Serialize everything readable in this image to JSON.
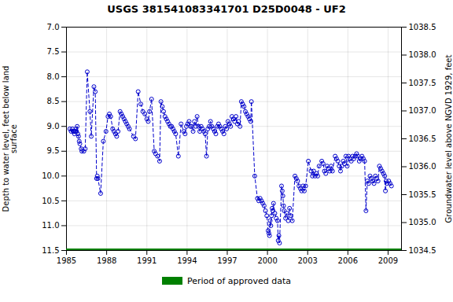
{
  "chart_data": {
    "type": "line",
    "title": "USGS 381541083341701 D25D0048 - UF2",
    "ylabel": "Depth to water level, feet below land\nsurface",
    "y2label": "Groundwater level above NGVD 1929, feet",
    "xlim": [
      1985,
      2010
    ],
    "xticks": [
      1985,
      1988,
      1991,
      1994,
      1997,
      2000,
      2003,
      2006,
      2009
    ],
    "ylim": [
      11.5,
      7.0
    ],
    "yticks": [
      {
        "value": 7.0,
        "label": "7.0"
      },
      7.5,
      {
        "value": 8.0,
        "label": "8.0"
      },
      8.5,
      {
        "value": 9.0,
        "label": "9.0"
      },
      9.5,
      {
        "value": 10.0,
        "label": "10.0"
      },
      10.5,
      {
        "value": 11.0,
        "label": "11.0"
      },
      11.5
    ],
    "y2lim": [
      1034.5,
      1038.5
    ],
    "y2ticks": [
      1034.5,
      {
        "value": 1035.0,
        "label": "1035.0"
      },
      1035.5,
      {
        "value": 1036.0,
        "label": "1036.0"
      },
      1036.5,
      {
        "value": 1037.0,
        "label": "1037.0"
      },
      1037.5,
      {
        "value": 1038.0,
        "label": "1038.0"
      },
      1038.5
    ],
    "grid": true,
    "legend": "bottom",
    "series": [
      {
        "type": "line",
        "color": "#0000cc",
        "marker": "circle",
        "line_style": "dashed",
        "x": [
          1985.25,
          1985.35,
          1985.45,
          1985.5,
          1985.55,
          1985.6,
          1985.65,
          1985.7,
          1985.75,
          1985.8,
          1985.85,
          1985.9,
          1985.95,
          1986.0,
          1986.1,
          1986.15,
          1986.3,
          1986.4,
          1986.55,
          1986.75,
          1986.85,
          1987.05,
          1987.15,
          1987.25,
          1987.3,
          1987.35,
          1987.55,
          1987.75,
          1987.95,
          1988.1,
          1988.2,
          1988.3,
          1988.45,
          1988.55,
          1988.65,
          1988.75,
          1988.85,
          1989.0,
          1989.1,
          1989.2,
          1989.3,
          1989.4,
          1989.5,
          1989.6,
          1989.7,
          1990.0,
          1990.15,
          1990.35,
          1990.55,
          1990.7,
          1990.85,
          1991.0,
          1991.1,
          1991.2,
          1991.35,
          1991.55,
          1991.65,
          1991.8,
          1991.95,
          1992.05,
          1992.15,
          1992.25,
          1992.35,
          1992.45,
          1992.55,
          1992.65,
          1992.75,
          1992.85,
          1992.95,
          1993.05,
          1993.15,
          1993.35,
          1993.55,
          1993.75,
          1993.85,
          1993.95,
          1994.05,
          1994.15,
          1994.25,
          1994.35,
          1994.45,
          1994.55,
          1994.65,
          1994.75,
          1994.85,
          1994.95,
          1995.05,
          1995.15,
          1995.25,
          1995.35,
          1995.45,
          1995.55,
          1995.65,
          1995.75,
          1995.85,
          1995.95,
          1996.05,
          1996.15,
          1996.25,
          1996.35,
          1996.45,
          1996.55,
          1996.65,
          1996.75,
          1996.85,
          1996.95,
          1997.05,
          1997.15,
          1997.25,
          1997.35,
          1997.45,
          1997.55,
          1997.65,
          1997.75,
          1997.85,
          1997.95,
          1998.05,
          1998.15,
          1998.25,
          1998.35,
          1998.45,
          1998.55,
          1998.65,
          1998.75,
          1998.8,
          1999.05,
          1999.25,
          1999.35,
          1999.45,
          1999.55,
          1999.65,
          1999.75,
          1999.85,
          1999.95,
          2000.05,
          2000.1,
          2000.15,
          2000.2,
          2000.25,
          2000.3,
          2000.35,
          2000.4,
          2000.45,
          2000.55,
          2000.65,
          2000.75,
          2000.8,
          2000.85,
          2000.9,
          2001.05,
          2001.1,
          2001.15,
          2001.2,
          2001.25,
          2001.35,
          2001.45,
          2001.55,
          2001.65,
          2001.75,
          2001.85,
          2002.05,
          2002.15,
          2002.25,
          2002.35,
          2002.45,
          2002.55,
          2002.65,
          2002.75,
          2002.85,
          2003.05,
          2003.25,
          2003.35,
          2003.45,
          2003.55,
          2003.65,
          2003.75,
          2003.85,
          2004.05,
          2004.15,
          2004.25,
          2004.35,
          2004.45,
          2004.55,
          2004.65,
          2004.75,
          2004.85,
          2005.05,
          2005.15,
          2005.25,
          2005.35,
          2005.45,
          2005.55,
          2005.65,
          2005.75,
          2005.85,
          2005.95,
          2006.05,
          2006.15,
          2006.25,
          2006.35,
          2006.45,
          2006.55,
          2006.65,
          2006.75,
          2006.85,
          2006.95,
          2007.05,
          2007.15,
          2007.25,
          2007.35,
          2007.45,
          2007.55,
          2007.65,
          2007.75,
          2007.85,
          2007.95,
          2008.05,
          2008.15,
          2008.25,
          2008.35,
          2008.45,
          2008.55,
          2008.65,
          2008.75,
          2008.8,
          2008.85,
          2008.9,
          2009.05,
          2009.15,
          2009.25
        ],
        "values": [
          9.05,
          9.1,
          9.05,
          9.1,
          9.1,
          9.15,
          9.1,
          9.05,
          9.1,
          9.0,
          9.15,
          9.2,
          9.3,
          9.35,
          9.45,
          9.5,
          9.5,
          9.45,
          7.9,
          8.7,
          9.2,
          8.2,
          8.3,
          10.05,
          10.0,
          10.05,
          10.35,
          9.3,
          9.1,
          8.8,
          8.75,
          8.8,
          9.05,
          9.1,
          9.15,
          9.2,
          9.1,
          8.7,
          8.75,
          8.8,
          8.85,
          8.9,
          8.95,
          9.0,
          9.05,
          9.2,
          9.25,
          8.3,
          8.55,
          8.7,
          8.75,
          8.85,
          8.9,
          8.7,
          8.45,
          9.5,
          9.55,
          9.6,
          9.7,
          8.5,
          8.6,
          8.7,
          8.8,
          8.85,
          8.9,
          8.95,
          9.0,
          9.0,
          9.05,
          9.1,
          9.15,
          9.6,
          8.95,
          9.1,
          9.15,
          9.0,
          8.95,
          8.9,
          9.0,
          9.0,
          9.1,
          8.9,
          9.0,
          8.8,
          9.0,
          9.1,
          9.0,
          9.05,
          9.1,
          9.15,
          9.6,
          9.05,
          9.0,
          8.9,
          9.0,
          9.05,
          9.1,
          9.15,
          9.0,
          8.95,
          9.0,
          9.05,
          9.1,
          9.15,
          9.0,
          9.05,
          8.9,
          8.95,
          9.0,
          8.8,
          8.85,
          8.9,
          8.8,
          8.95,
          8.9,
          9.0,
          8.5,
          8.55,
          8.6,
          8.7,
          8.75,
          8.8,
          8.85,
          8.9,
          8.5,
          10.0,
          10.45,
          10.5,
          10.45,
          10.5,
          10.55,
          10.6,
          10.7,
          10.8,
          11.1,
          11.15,
          11.2,
          10.9,
          11.0,
          10.8,
          10.65,
          10.7,
          10.55,
          10.75,
          10.85,
          10.9,
          11.3,
          11.2,
          11.35,
          10.2,
          10.3,
          10.4,
          10.6,
          10.7,
          10.85,
          10.75,
          10.9,
          10.65,
          10.8,
          10.9,
          10.0,
          10.05,
          10.1,
          10.2,
          10.25,
          10.3,
          10.2,
          10.3,
          10.2,
          9.7,
          9.9,
          10.0,
          9.9,
          10.0,
          9.95,
          10.0,
          9.8,
          9.7,
          9.75,
          9.9,
          9.95,
          9.8,
          9.85,
          9.9,
          9.8,
          9.9,
          9.6,
          9.65,
          9.7,
          9.8,
          9.9,
          9.8,
          9.7,
          9.75,
          9.6,
          9.8,
          9.6,
          9.65,
          9.7,
          9.6,
          9.65,
          9.6,
          9.55,
          9.6,
          9.7,
          9.65,
          9.6,
          9.65,
          9.7,
          10.7,
          10.1,
          10.15,
          10.0,
          10.05,
          10.1,
          10.15,
          10.0,
          10.05,
          10.1,
          9.8,
          9.85,
          9.9,
          9.95,
          10.0,
          10.3,
          10.1,
          10.15,
          10.1,
          10.15,
          10.2
        ]
      },
      {
        "type": "line",
        "name": "Period of approved data",
        "color": "#008000",
        "line_style": "solid",
        "x": [
          1985,
          2010
        ],
        "values": [
          11.5,
          11.5
        ]
      }
    ]
  }
}
